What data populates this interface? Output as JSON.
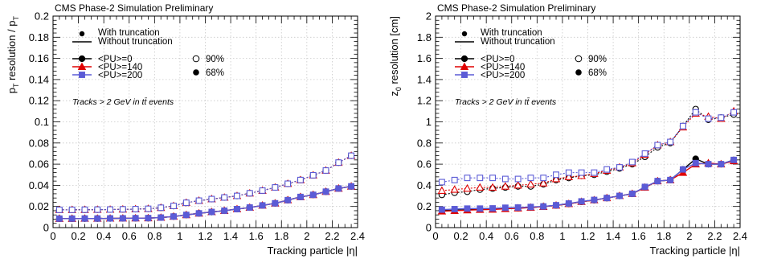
{
  "chart_data": [
    {
      "type": "scatter",
      "header": "CMS Phase-2 Simulation Preliminary",
      "xlabel": "Tracking particle |η|",
      "ylabel_main": "p",
      "ylabel_sub": "T",
      "ylabel_rest": " resolution / p",
      "ylabel_sub2": "T",
      "xlim": [
        0,
        2.4
      ],
      "ylim": [
        0,
        0.2
      ],
      "xticks": [
        "0",
        "0.2",
        "0.4",
        "0.6",
        "0.8",
        "1",
        "1.2",
        "1.4",
        "1.6",
        "1.8",
        "2",
        "2.2",
        "2.4"
      ],
      "yticks": [
        "0",
        "0.02",
        "0.04",
        "0.06",
        "0.08",
        "0.1",
        "0.12",
        "0.14",
        "0.16",
        "0.18",
        "0.2"
      ],
      "annotation": "Tracks > 2 GeV in tt̄ events",
      "legend": {
        "with_truncation": "With truncation",
        "without_truncation": "Without truncation",
        "pu0": "<PU>=0",
        "pu140": "<PU>=140",
        "pu200": "<PU>=200",
        "q90": "90%",
        "q68": "68%"
      },
      "x": [
        0.05,
        0.15,
        0.25,
        0.35,
        0.45,
        0.55,
        0.65,
        0.75,
        0.85,
        0.95,
        1.05,
        1.15,
        1.25,
        1.35,
        1.45,
        1.55,
        1.65,
        1.75,
        1.85,
        1.95,
        2.05,
        2.15,
        2.25,
        2.35
      ],
      "series": [
        {
          "name": "<PU>=0",
          "quantile": "68%",
          "values": [
            0.0085,
            0.0085,
            0.0086,
            0.0086,
            0.0087,
            0.0088,
            0.0089,
            0.009,
            0.0095,
            0.0105,
            0.012,
            0.0135,
            0.0148,
            0.016,
            0.0175,
            0.019,
            0.021,
            0.023,
            0.026,
            0.029,
            0.031,
            0.034,
            0.037,
            0.039
          ]
        },
        {
          "name": "<PU>=140",
          "quantile": "68%",
          "values": [
            0.0085,
            0.0085,
            0.0086,
            0.0086,
            0.0087,
            0.0088,
            0.0089,
            0.009,
            0.0095,
            0.0105,
            0.012,
            0.0135,
            0.0148,
            0.016,
            0.0175,
            0.019,
            0.021,
            0.023,
            0.026,
            0.029,
            0.031,
            0.034,
            0.037,
            0.039
          ]
        },
        {
          "name": "<PU>=200",
          "quantile": "68%",
          "values": [
            0.0085,
            0.0085,
            0.0086,
            0.0086,
            0.0087,
            0.0088,
            0.0089,
            0.009,
            0.0095,
            0.0105,
            0.012,
            0.0135,
            0.0148,
            0.016,
            0.0175,
            0.019,
            0.021,
            0.023,
            0.026,
            0.029,
            0.031,
            0.034,
            0.037,
            0.039
          ]
        },
        {
          "name": "<PU>=0",
          "quantile": "90%",
          "values": [
            0.0168,
            0.0168,
            0.0169,
            0.017,
            0.0171,
            0.0173,
            0.0175,
            0.0178,
            0.0188,
            0.0205,
            0.0235,
            0.0255,
            0.027,
            0.0285,
            0.03,
            0.0325,
            0.035,
            0.038,
            0.0415,
            0.045,
            0.0495,
            0.054,
            0.0615,
            0.068
          ]
        },
        {
          "name": "<PU>=140",
          "quantile": "90%",
          "values": [
            0.0168,
            0.0168,
            0.0169,
            0.017,
            0.0171,
            0.0173,
            0.0175,
            0.0178,
            0.0188,
            0.0205,
            0.0235,
            0.0255,
            0.027,
            0.0285,
            0.03,
            0.0325,
            0.035,
            0.038,
            0.0415,
            0.045,
            0.0495,
            0.054,
            0.0615,
            0.068
          ]
        },
        {
          "name": "<PU>=200",
          "quantile": "90%",
          "values": [
            0.0168,
            0.0168,
            0.0169,
            0.017,
            0.0171,
            0.0173,
            0.0175,
            0.0178,
            0.0188,
            0.0205,
            0.0235,
            0.0255,
            0.027,
            0.0285,
            0.03,
            0.0325,
            0.035,
            0.038,
            0.0415,
            0.045,
            0.0495,
            0.054,
            0.0615,
            0.068
          ]
        }
      ]
    },
    {
      "type": "scatter",
      "header": "CMS Phase-2 Simulation Preliminary",
      "xlabel": "Tracking particle |η|",
      "ylabel_main": "z",
      "ylabel_sub": "0",
      "ylabel_rest": " resolution [cm]",
      "ylabel_sub2": "",
      "xlim": [
        0,
        2.4
      ],
      "ylim": [
        0,
        2
      ],
      "xticks": [
        "0",
        "0.2",
        "0.4",
        "0.6",
        "0.8",
        "1",
        "1.2",
        "1.4",
        "1.6",
        "1.8",
        "2",
        "2.2",
        "2.4"
      ],
      "yticks": [
        "0",
        "0.2",
        "0.4",
        "0.6",
        "0.8",
        "1",
        "1.2",
        "1.4",
        "1.6",
        "1.8",
        "2"
      ],
      "annotation": "Tracks > 2 GeV in tt̄ events",
      "legend": {
        "with_truncation": "With truncation",
        "without_truncation": "Without truncation",
        "pu0": "<PU>=0",
        "pu140": "<PU>=140",
        "pu200": "<PU>=200",
        "q90": "90%",
        "q68": "68%"
      },
      "x": [
        0.05,
        0.15,
        0.25,
        0.35,
        0.45,
        0.55,
        0.65,
        0.75,
        0.85,
        0.95,
        1.05,
        1.15,
        1.25,
        1.35,
        1.45,
        1.55,
        1.65,
        1.75,
        1.85,
        1.95,
        2.05,
        2.15,
        2.25,
        2.35
      ],
      "series": [
        {
          "name": "<PU>=0",
          "quantile": "68%",
          "values": [
            0.16,
            0.165,
            0.17,
            0.172,
            0.175,
            0.18,
            0.185,
            0.19,
            0.2,
            0.21,
            0.225,
            0.245,
            0.26,
            0.28,
            0.3,
            0.32,
            0.38,
            0.44,
            0.45,
            0.55,
            0.65,
            0.6,
            0.6,
            0.64
          ]
        },
        {
          "name": "<PU>=140",
          "quantile": "68%",
          "values": [
            0.155,
            0.16,
            0.165,
            0.17,
            0.172,
            0.178,
            0.183,
            0.19,
            0.198,
            0.21,
            0.225,
            0.245,
            0.26,
            0.28,
            0.3,
            0.32,
            0.38,
            0.44,
            0.45,
            0.52,
            0.6,
            0.61,
            0.6,
            0.63
          ]
        },
        {
          "name": "<PU>=200",
          "quantile": "68%",
          "values": [
            0.17,
            0.175,
            0.18,
            0.18,
            0.182,
            0.188,
            0.19,
            0.195,
            0.2,
            0.212,
            0.228,
            0.248,
            0.262,
            0.28,
            0.3,
            0.32,
            0.385,
            0.44,
            0.45,
            0.55,
            0.61,
            0.6,
            0.6,
            0.64
          ]
        },
        {
          "name": "<PU>=0",
          "quantile": "90%",
          "values": [
            0.31,
            0.33,
            0.34,
            0.36,
            0.37,
            0.38,
            0.39,
            0.39,
            0.41,
            0.45,
            0.47,
            0.49,
            0.5,
            0.53,
            0.56,
            0.6,
            0.67,
            0.76,
            0.8,
            0.96,
            1.12,
            1.02,
            1.04,
            1.07
          ]
        },
        {
          "name": "<PU>=140",
          "quantile": "90%",
          "values": [
            0.35,
            0.36,
            0.37,
            0.38,
            0.38,
            0.39,
            0.4,
            0.41,
            0.42,
            0.46,
            0.48,
            0.49,
            0.51,
            0.54,
            0.57,
            0.61,
            0.69,
            0.78,
            0.81,
            0.95,
            1.08,
            1.05,
            1.03,
            1.1
          ]
        },
        {
          "name": "<PU>=200",
          "quantile": "90%",
          "values": [
            0.43,
            0.45,
            0.47,
            0.47,
            0.47,
            0.46,
            0.46,
            0.47,
            0.47,
            0.5,
            0.52,
            0.52,
            0.52,
            0.55,
            0.57,
            0.62,
            0.7,
            0.78,
            0.81,
            0.96,
            1.09,
            1.03,
            1.04,
            1.09
          ]
        }
      ]
    }
  ],
  "colors": {
    "pu0": "#000000",
    "pu140": "#e00000",
    "pu200": "#5b5bd6"
  }
}
